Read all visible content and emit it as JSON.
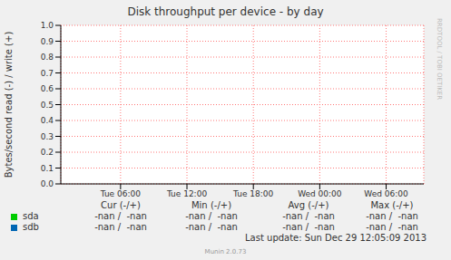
{
  "chart_data": {
    "type": "line",
    "title": "Disk throughput per device - by day",
    "y_label": "Bytes/second read (-) / write (+)",
    "side_text": "RRDTOOL / TOBI OETIKER",
    "x": [
      6,
      12,
      18,
      24,
      30
    ],
    "xlim": [
      0.6,
      33.4
    ],
    "xticks": [
      {
        "value": 6,
        "label": "Tue 06:00"
      },
      {
        "value": 12,
        "label": "Tue 12:00"
      },
      {
        "value": 18,
        "label": "Tue 18:00"
      },
      {
        "value": 24,
        "label": "Wed 00:00"
      },
      {
        "value": 30,
        "label": "Wed 06:00"
      }
    ],
    "ylim": [
      0,
      1
    ],
    "yticks": [
      {
        "value": 0,
        "label": "0.0"
      },
      0.1,
      0.2,
      0.3,
      0.4,
      0.5,
      0.6,
      0.7,
      0.8,
      0.9,
      {
        "value": 1,
        "label": "1.0"
      }
    ],
    "grid": true,
    "series": [
      {
        "name": "sda",
        "color": "#00cc00",
        "values": [
          null,
          null,
          null,
          null,
          null
        ],
        "stats": [
          "-nan /  -nan",
          "-nan /  -nan",
          "-nan /  -nan",
          "-nan /  -nan"
        ]
      },
      {
        "name": "sdb",
        "color": "#0066b3",
        "values": [
          null,
          null,
          null,
          null,
          null
        ],
        "stats": [
          "-nan /  -nan",
          "-nan /  -nan",
          "-nan /  -nan",
          "-nan /  -nan"
        ]
      }
    ],
    "stat_columns": [
      "Cur (-/+)",
      "Min (-/+)",
      "Avg (-/+)",
      "Max (-/+)"
    ],
    "last_update": "Last update: Sun Dec 29 12:05:09 2013",
    "footer": "Munin 2.0.73"
  }
}
